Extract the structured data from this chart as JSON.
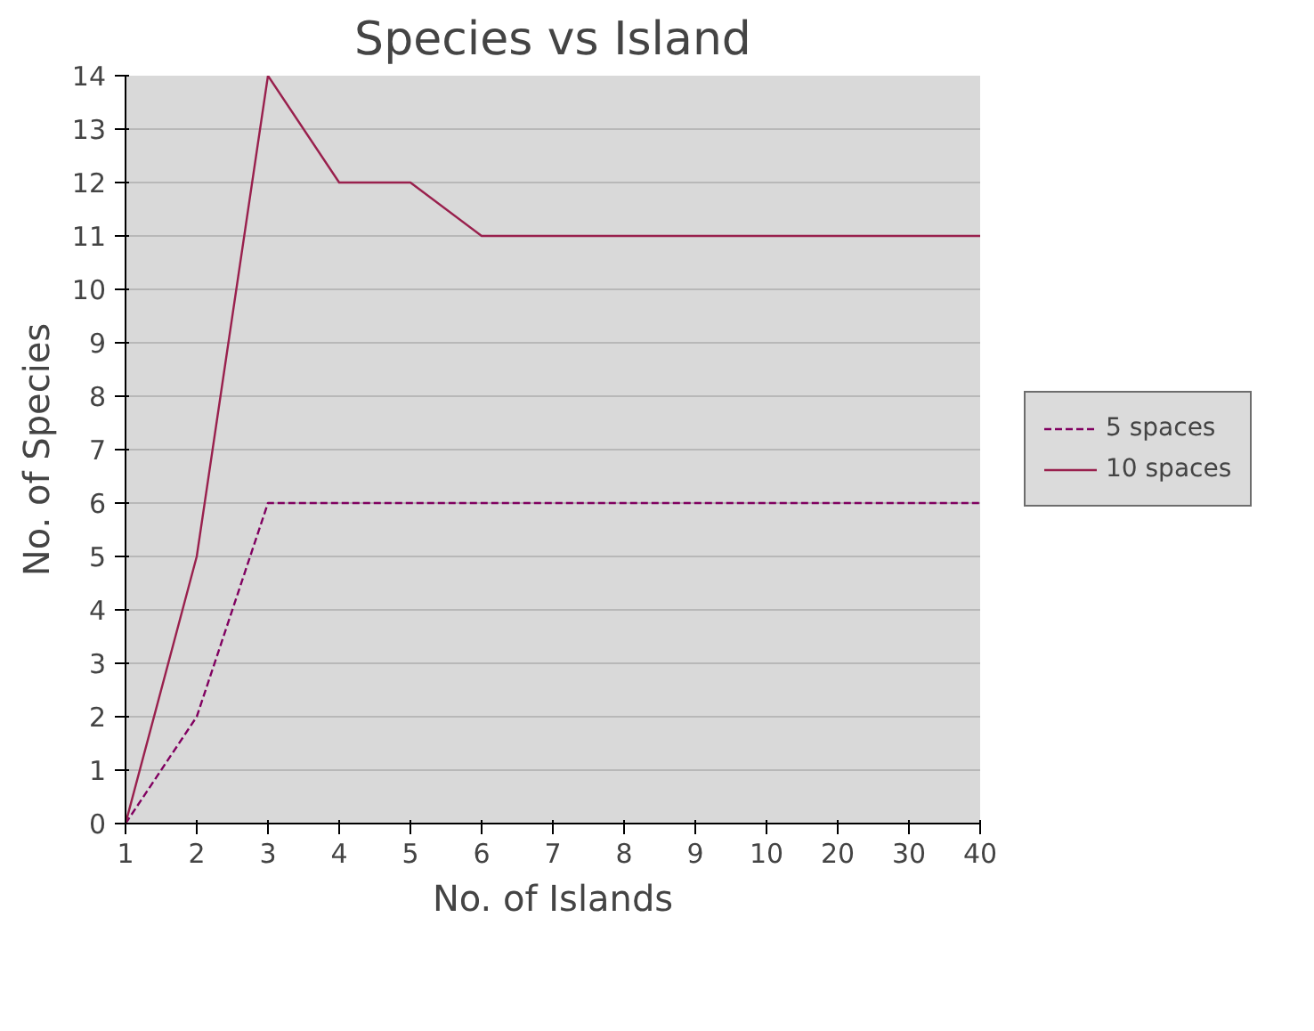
{
  "chart_data": {
    "type": "line",
    "title": "Species vs Island",
    "xlabel": "No. of Islands",
    "ylabel": "No. of Species",
    "categories": [
      "1",
      "2",
      "3",
      "4",
      "5",
      "6",
      "7",
      "8",
      "9",
      "10",
      "20",
      "30",
      "40"
    ],
    "series": [
      {
        "name": "5 spaces",
        "color": "#800060",
        "line_style": "dashed",
        "values": [
          0,
          2,
          6,
          6,
          6,
          6,
          6,
          6,
          6,
          6,
          6,
          6,
          6
        ]
      },
      {
        "name": "10 spaces",
        "color": "#99204d",
        "line_style": "solid",
        "values": [
          0,
          5,
          14,
          12,
          12,
          11,
          11,
          11,
          11,
          11,
          11,
          11,
          11
        ]
      }
    ],
    "ylim": [
      0,
      14
    ],
    "yticks": [
      0,
      1,
      2,
      3,
      4,
      5,
      6,
      7,
      8,
      9,
      10,
      11,
      12,
      13,
      14
    ],
    "grid": "y",
    "legend": "right",
    "marker": "none"
  }
}
